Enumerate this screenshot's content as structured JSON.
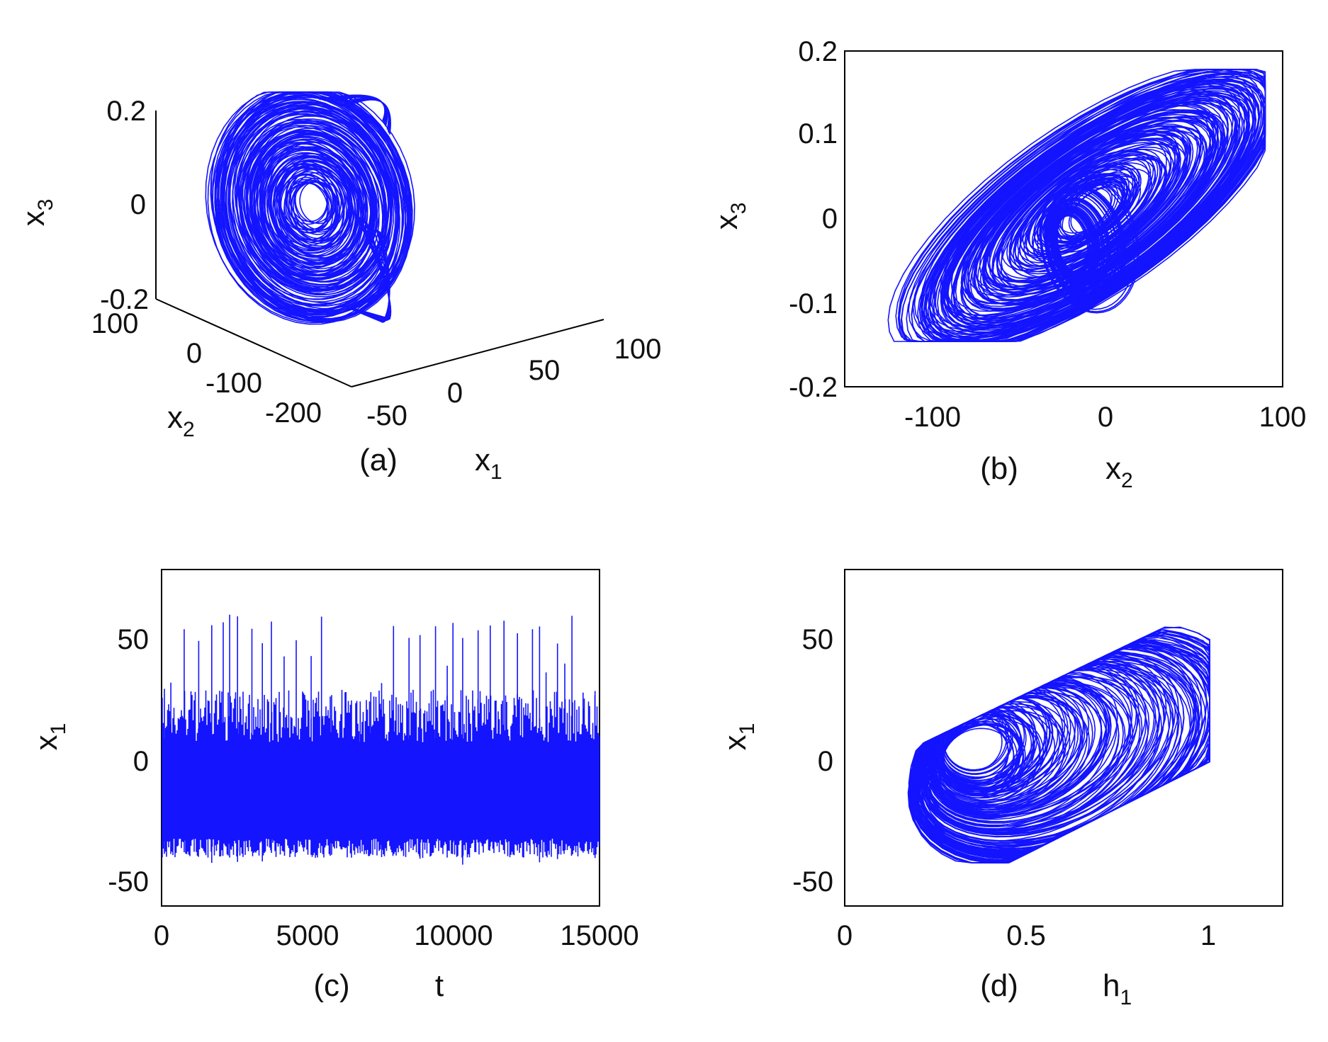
{
  "color": "#1414ff",
  "chart_data": [
    {
      "panel": "(a)",
      "type": "line",
      "projection": "3d",
      "xlabel": {
        "base": "x",
        "sub": "1"
      },
      "ylabel": {
        "base": "x",
        "sub": "2"
      },
      "zlabel": {
        "base": "x",
        "sub": "3"
      },
      "xticks": [
        "-50",
        "0",
        "50",
        "100"
      ],
      "yticks": [
        "100",
        "0",
        "-100",
        "-200"
      ],
      "zticks": [
        "0.2",
        "0",
        "-0.2"
      ],
      "xlim": [
        -50,
        100
      ],
      "ylim": [
        -200,
        100
      ],
      "zlim": [
        -0.2,
        0.2
      ]
    },
    {
      "panel": "(b)",
      "type": "line",
      "xlabel": {
        "base": "x",
        "sub": "2"
      },
      "ylabel": {
        "base": "x",
        "sub": "3"
      },
      "xticks": [
        "-100",
        "0",
        "100"
      ],
      "yticks": [
        "0.2",
        "0.1",
        "0",
        "-0.1",
        "-0.2"
      ],
      "xlim": [
        -150,
        100
      ],
      "ylim": [
        -0.2,
        0.2
      ],
      "trajectory_range": {
        "x": [
          -145,
          90
        ],
        "y": [
          -0.145,
          0.18
        ]
      }
    },
    {
      "panel": "(c)",
      "type": "line",
      "xlabel": {
        "base": "t",
        "sub": ""
      },
      "ylabel": {
        "base": "x",
        "sub": "1"
      },
      "xticks": [
        "0",
        "5000",
        "10000",
        "15000"
      ],
      "yticks": [
        "50",
        "0",
        "-50"
      ],
      "xlim": [
        0,
        15000
      ],
      "ylim": [
        -60,
        80
      ],
      "signal_range": {
        "min": -43,
        "max": 62,
        "typical": [
          -32,
          30
        ]
      }
    },
    {
      "panel": "(d)",
      "type": "line",
      "xlabel": {
        "base": "h",
        "sub": "1"
      },
      "ylabel": {
        "base": "x",
        "sub": "1"
      },
      "xticks": [
        "0",
        "0.5",
        "1"
      ],
      "yticks": [
        "50",
        "0",
        "-50"
      ],
      "xlim": [
        0,
        1.2
      ],
      "ylim": [
        -60,
        80
      ],
      "trajectory_range": {
        "x": [
          0.04,
          1.0
        ],
        "y": [
          -42,
          61
        ]
      }
    }
  ]
}
